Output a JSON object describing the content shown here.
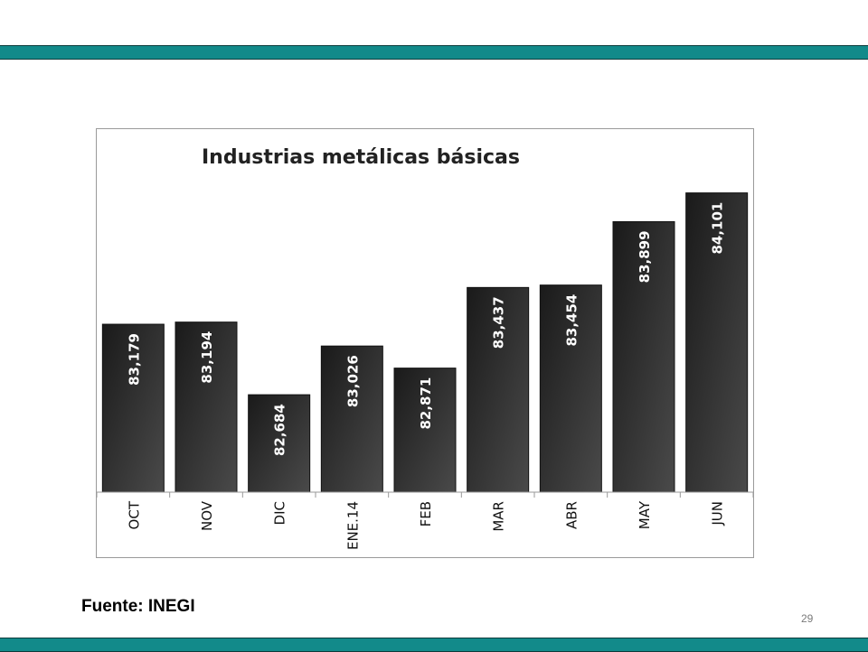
{
  "slide": {
    "source_text": "Fuente: INEGI",
    "page_number": "29",
    "accent_color": "#128a8a"
  },
  "chart_data": {
    "type": "bar",
    "title": "Industrias metálicas básicas",
    "categories": [
      "OCT",
      "NOV",
      "DIC",
      "ENE.14",
      "FEB",
      "MAR",
      "ABR",
      "MAY",
      "JUN"
    ],
    "values": [
      83179,
      83194,
      82684,
      83026,
      82871,
      83437,
      83454,
      83899,
      84101
    ],
    "value_labels": [
      "83,179",
      "83,194",
      "82,684",
      "83,026",
      "82,871",
      "83,437",
      "83,454",
      "83,899",
      "84,101"
    ],
    "xlabel": "",
    "ylabel": "",
    "ylim": [
      82000,
      84200
    ],
    "bar_color": "#262626",
    "grid": false,
    "legend": "none"
  }
}
